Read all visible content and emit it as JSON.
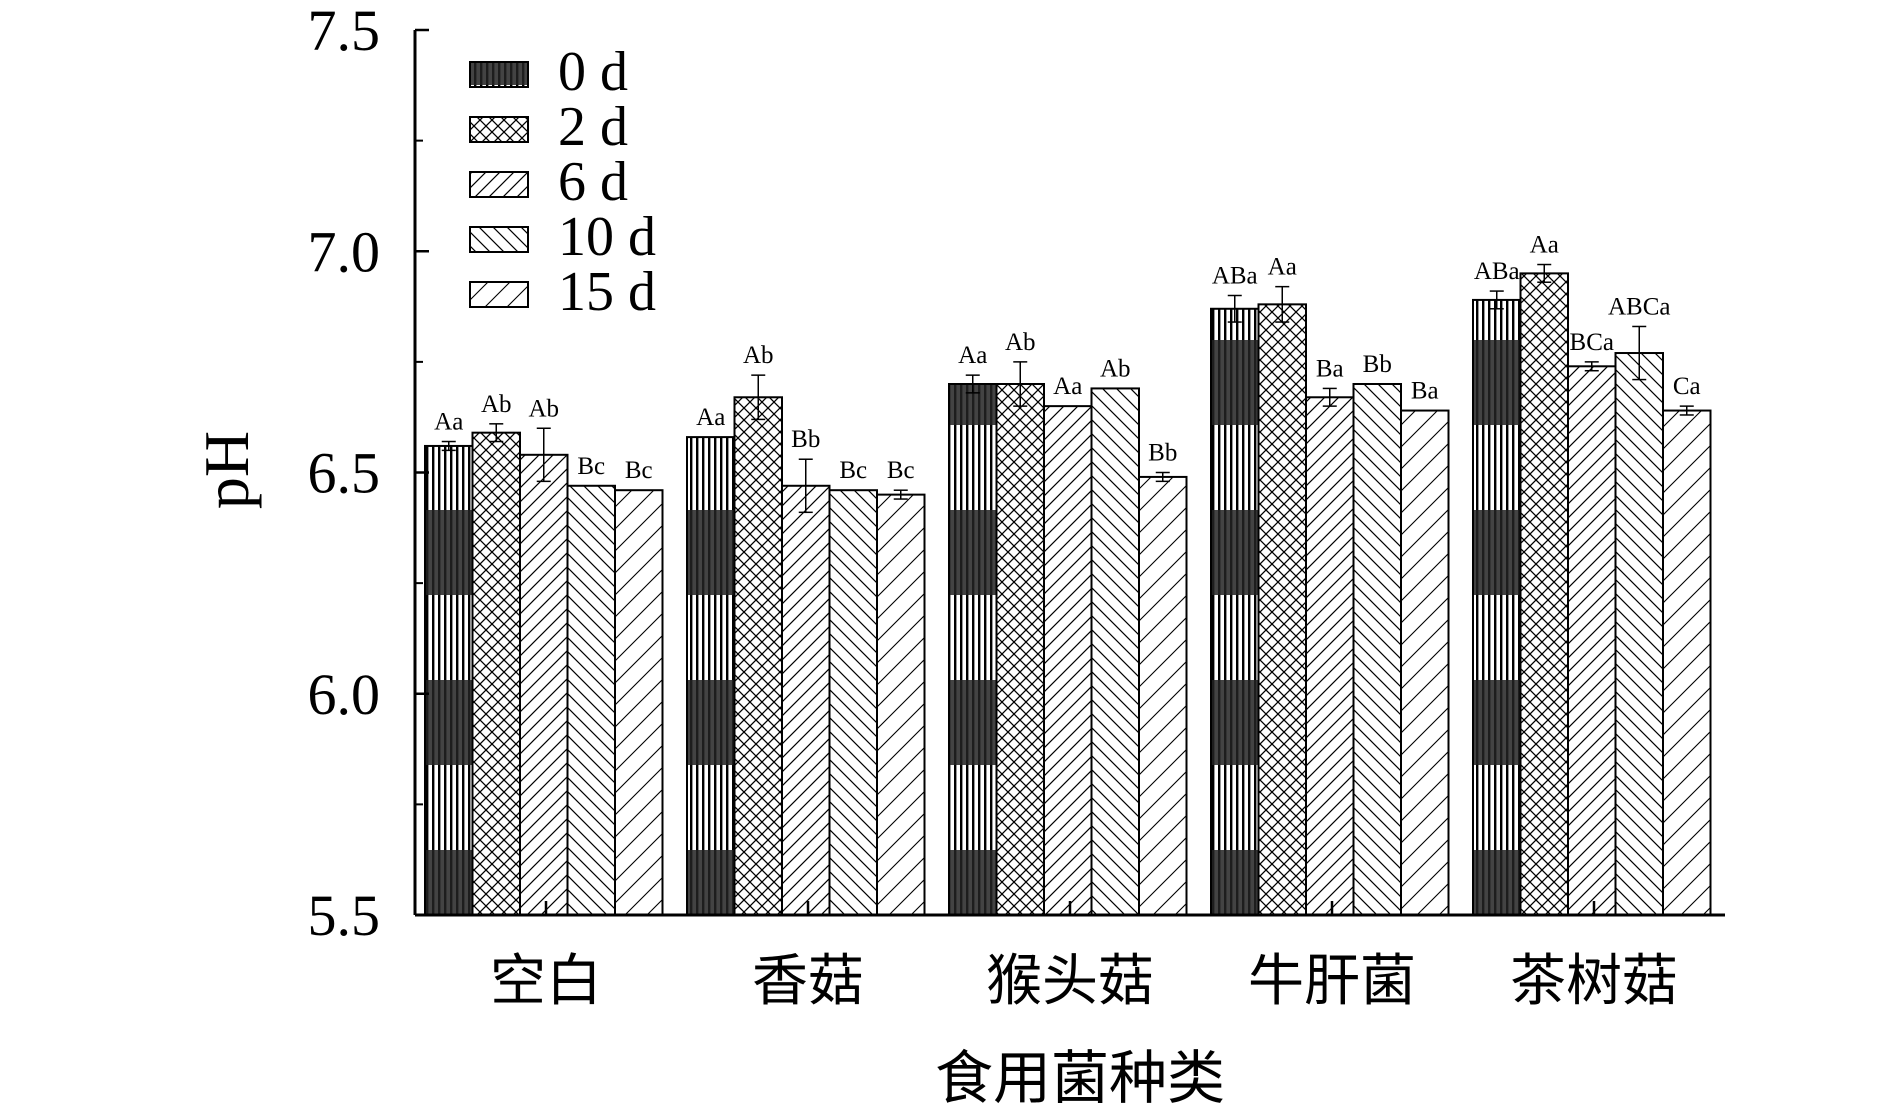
{
  "chart_data": {
    "type": "bar",
    "title": "",
    "xlabel": "食用菌种类",
    "ylabel": "pH",
    "ylim": [
      5.5,
      7.5
    ],
    "yticks": [
      "5.5",
      "6.0",
      "6.5",
      "7.0",
      "7.5"
    ],
    "categories": [
      "空白",
      "香菇",
      "猴头菇",
      "牛肝菌",
      "茶树菇"
    ],
    "legend_position": "top-left",
    "grid": false,
    "series": [
      {
        "name": "0 d",
        "pattern": "vertical-banded",
        "values": [
          6.56,
          6.58,
          6.7,
          6.87,
          6.89
        ],
        "errors": [
          0.01,
          0.0,
          0.02,
          0.03,
          0.02
        ],
        "labels": [
          "Aa",
          "Aa",
          "Aa",
          "ABa",
          "ABa"
        ]
      },
      {
        "name": "2 d",
        "pattern": "crosshatch",
        "values": [
          6.59,
          6.67,
          6.7,
          6.88,
          6.95
        ],
        "errors": [
          0.02,
          0.05,
          0.05,
          0.04,
          0.02
        ],
        "labels": [
          "Ab",
          "Ab",
          "Ab",
          "Aa",
          "Aa"
        ]
      },
      {
        "name": "6 d",
        "pattern": "diagonal-dense",
        "values": [
          6.54,
          6.47,
          6.65,
          6.67,
          6.74
        ],
        "errors": [
          0.06,
          0.06,
          0.0,
          0.02,
          0.01
        ],
        "labels": [
          "Ab",
          "Bb",
          "Aa",
          "Ba",
          "BCa"
        ]
      },
      {
        "name": "10 d",
        "pattern": "backslash",
        "values": [
          6.47,
          6.46,
          6.69,
          6.7,
          6.77
        ],
        "errors": [
          0.0,
          0.0,
          0.0,
          0.0,
          0.06
        ],
        "labels": [
          "Bc",
          "Bc",
          "Ab",
          "Bb",
          "ABCa"
        ]
      },
      {
        "name": "15 d",
        "pattern": "diagonal-sparse",
        "values": [
          6.46,
          6.45,
          6.49,
          6.64,
          6.64
        ],
        "errors": [
          0.0,
          0.01,
          0.01,
          0.0,
          0.01
        ],
        "labels": [
          "Bc",
          "Bc",
          "Bb",
          "Ba",
          "Ca"
        ]
      }
    ]
  }
}
